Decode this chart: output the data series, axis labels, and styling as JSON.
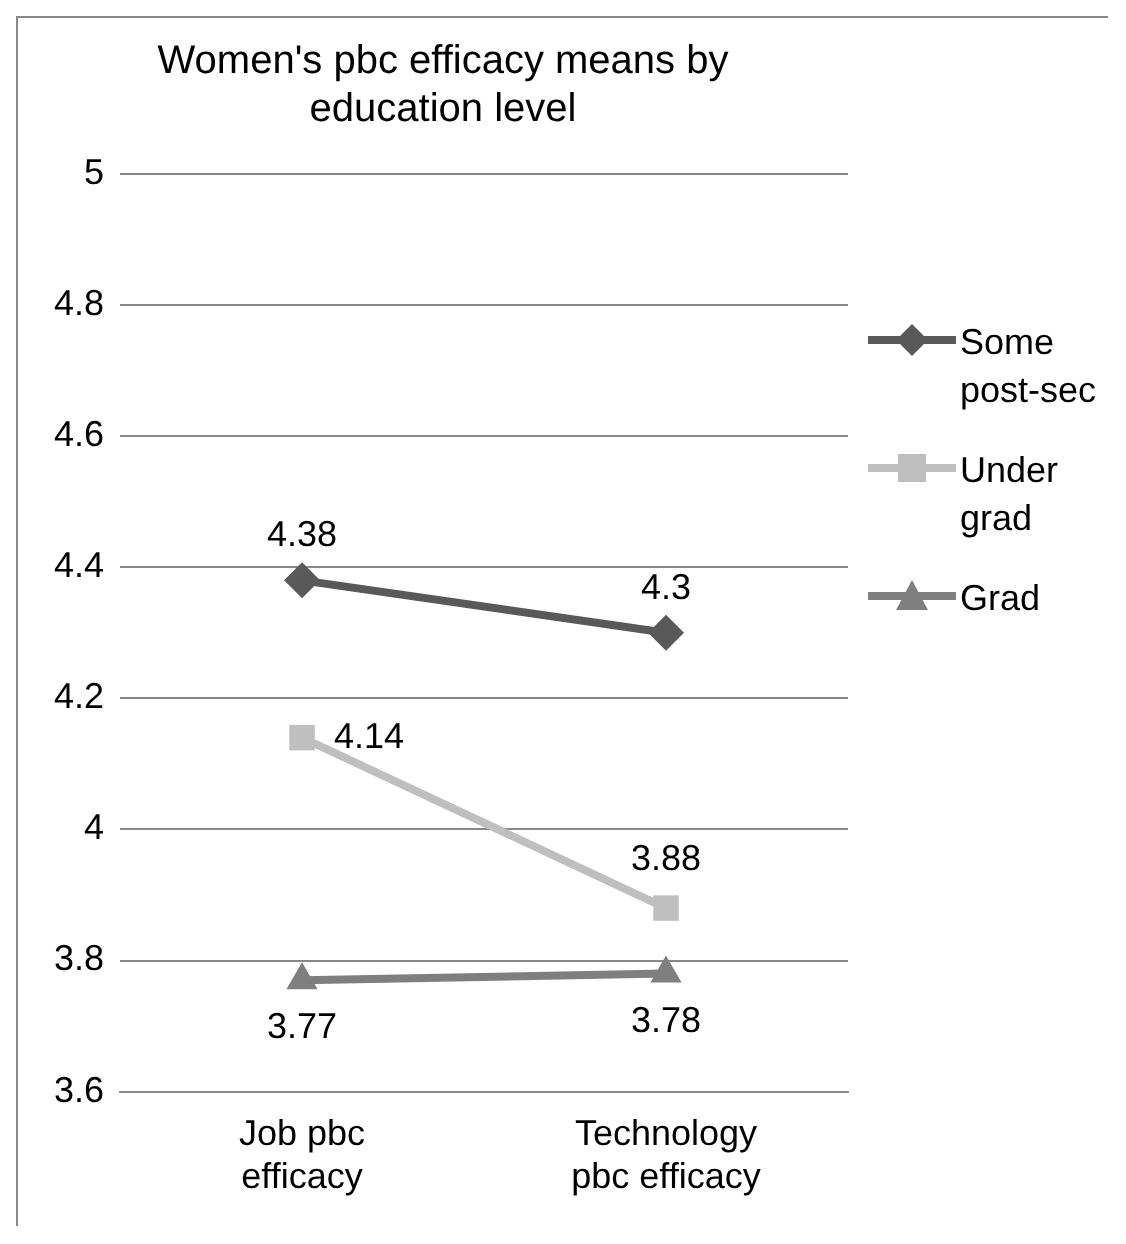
{
  "chart_data": {
    "type": "line",
    "title": "Women's pbc efficacy means by education level",
    "categories": [
      "Job pbc efficacy",
      "Technology pbc efficacy"
    ],
    "series": [
      {
        "name": "Some post-sec",
        "color": "#595959",
        "marker": "diamond",
        "values": [
          4.38,
          4.3
        ]
      },
      {
        "name": "Under grad",
        "color": "#bfbfbf",
        "marker": "square",
        "values": [
          4.14,
          3.88
        ]
      },
      {
        "name": "Grad",
        "color": "#7f7f7f",
        "marker": "triangle",
        "values": [
          3.77,
          3.78
        ]
      }
    ],
    "ylim": [
      3.6,
      5
    ],
    "yticks": [
      3.6,
      3.8,
      4,
      4.2,
      4.4,
      4.6,
      4.8,
      5
    ],
    "grid": "y",
    "legend": "right",
    "data_labels": true
  }
}
